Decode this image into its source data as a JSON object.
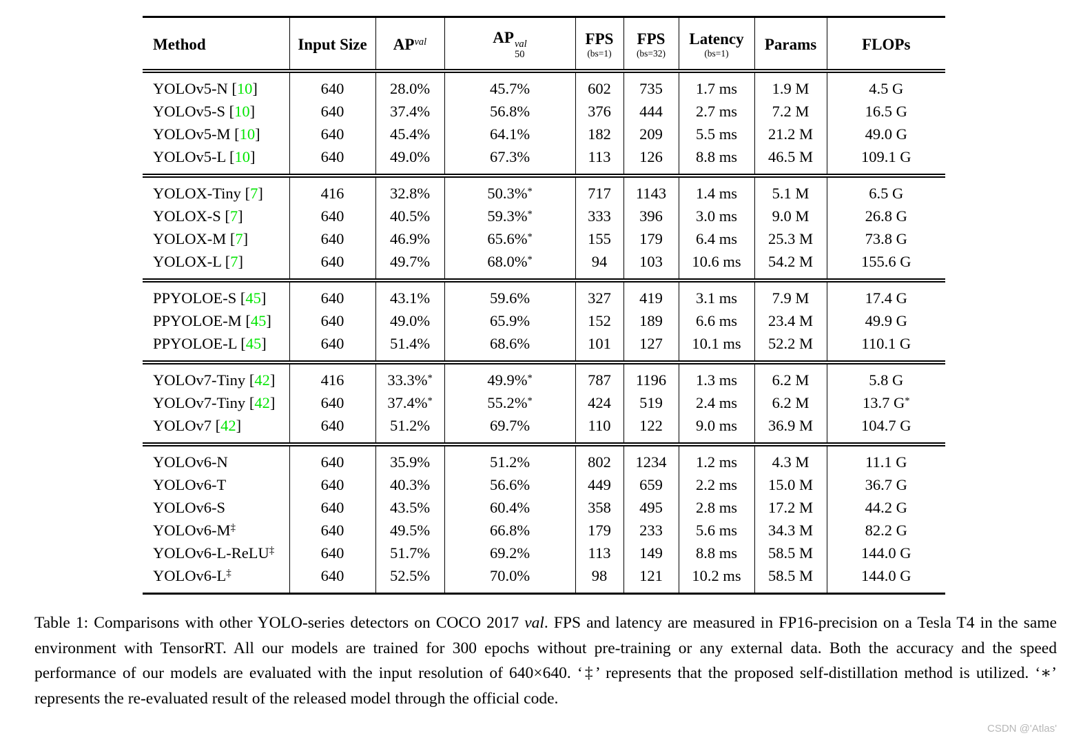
{
  "colors": {
    "citation_green": "#00e500",
    "watermark_gray": "#b7b7b7",
    "text_black": "#000000"
  },
  "watermark": "CSDN @'Atlas'",
  "table": {
    "columns": [
      {
        "id": "method",
        "main": "Method",
        "align": "left"
      },
      {
        "id": "input-size",
        "main": "Input Size"
      },
      {
        "id": "ap",
        "main": "AP",
        "sup": "val"
      },
      {
        "id": "ap50",
        "main": "AP",
        "sup": "val",
        "sub": "50"
      },
      {
        "id": "fps-bs1",
        "main": "FPS",
        "note": "(bs=1)"
      },
      {
        "id": "fps-bs32",
        "main": "FPS",
        "note": "(bs=32)"
      },
      {
        "id": "latency",
        "main": "Latency",
        "note": "(bs=1)"
      },
      {
        "id": "params",
        "main": "Params"
      },
      {
        "id": "flops",
        "main": "FLOPs"
      }
    ],
    "groups": [
      {
        "name": "yolov5",
        "rows": [
          {
            "name": "YOLOv5-N",
            "cite": "10",
            "mark": "",
            "size": "640",
            "ap": "28.0%",
            "apm": "",
            "ap50": "45.7%",
            "ap50m": "",
            "fps1": "602",
            "fps32": "735",
            "lat": "1.7 ms",
            "params": "1.9 M",
            "flops": "4.5 G",
            "flopsm": ""
          },
          {
            "name": "YOLOv5-S",
            "cite": "10",
            "mark": "",
            "size": "640",
            "ap": "37.4%",
            "apm": "",
            "ap50": "56.8%",
            "ap50m": "",
            "fps1": "376",
            "fps32": "444",
            "lat": "2.7 ms",
            "params": "7.2 M",
            "flops": "16.5 G",
            "flopsm": ""
          },
          {
            "name": "YOLOv5-M",
            "cite": "10",
            "mark": "",
            "size": "640",
            "ap": "45.4%",
            "apm": "",
            "ap50": "64.1%",
            "ap50m": "",
            "fps1": "182",
            "fps32": "209",
            "lat": "5.5 ms",
            "params": "21.2 M",
            "flops": "49.0 G",
            "flopsm": ""
          },
          {
            "name": "YOLOv5-L",
            "cite": "10",
            "mark": "",
            "size": "640",
            "ap": "49.0%",
            "apm": "",
            "ap50": "67.3%",
            "ap50m": "",
            "fps1": "113",
            "fps32": "126",
            "lat": "8.8 ms",
            "params": "46.5 M",
            "flops": "109.1 G",
            "flopsm": ""
          }
        ]
      },
      {
        "name": "yolox",
        "rows": [
          {
            "name": "YOLOX-Tiny",
            "cite": "7",
            "mark": "",
            "size": "416",
            "ap": "32.8%",
            "apm": "",
            "ap50": "50.3%",
            "ap50m": "*",
            "fps1": "717",
            "fps32": "1143",
            "lat": "1.4 ms",
            "params": "5.1 M",
            "flops": "6.5 G",
            "flopsm": ""
          },
          {
            "name": "YOLOX-S",
            "cite": "7",
            "mark": "",
            "size": "640",
            "ap": "40.5%",
            "apm": "",
            "ap50": "59.3%",
            "ap50m": "*",
            "fps1": "333",
            "fps32": "396",
            "lat": "3.0 ms",
            "params": "9.0 M",
            "flops": "26.8 G",
            "flopsm": ""
          },
          {
            "name": "YOLOX-M",
            "cite": "7",
            "mark": "",
            "size": "640",
            "ap": "46.9%",
            "apm": "",
            "ap50": "65.6%",
            "ap50m": "*",
            "fps1": "155",
            "fps32": "179",
            "lat": "6.4 ms",
            "params": "25.3 M",
            "flops": "73.8 G",
            "flopsm": ""
          },
          {
            "name": "YOLOX-L",
            "cite": "7",
            "mark": "",
            "size": "640",
            "ap": "49.7%",
            "apm": "",
            "ap50": "68.0%",
            "ap50m": "*",
            "fps1": "94",
            "fps32": "103",
            "lat": "10.6 ms",
            "params": "54.2 M",
            "flops": "155.6 G",
            "flopsm": ""
          }
        ]
      },
      {
        "name": "ppyoloe",
        "rows": [
          {
            "name": "PPYOLOE-S",
            "cite": "45",
            "mark": "",
            "size": "640",
            "ap": "43.1%",
            "apm": "",
            "ap50": "59.6%",
            "ap50m": "",
            "fps1": "327",
            "fps32": "419",
            "lat": "3.1 ms",
            "params": "7.9 M",
            "flops": "17.4 G",
            "flopsm": ""
          },
          {
            "name": "PPYOLOE-M",
            "cite": "45",
            "mark": "",
            "size": "640",
            "ap": "49.0%",
            "apm": "",
            "ap50": "65.9%",
            "ap50m": "",
            "fps1": "152",
            "fps32": "189",
            "lat": "6.6 ms",
            "params": "23.4 M",
            "flops": "49.9 G",
            "flopsm": ""
          },
          {
            "name": "PPYOLOE-L",
            "cite": "45",
            "mark": "",
            "size": "640",
            "ap": "51.4%",
            "apm": "",
            "ap50": "68.6%",
            "ap50m": "",
            "fps1": "101",
            "fps32": "127",
            "lat": "10.1 ms",
            "params": "52.2 M",
            "flops": "110.1 G",
            "flopsm": ""
          }
        ]
      },
      {
        "name": "yolov7",
        "rows": [
          {
            "name": "YOLOv7-Tiny",
            "cite": "42",
            "mark": "",
            "size": "416",
            "ap": "33.3%",
            "apm": "*",
            "ap50": "49.9%",
            "ap50m": "*",
            "fps1": "787",
            "fps32": "1196",
            "lat": "1.3 ms",
            "params": "6.2 M",
            "flops": "5.8 G",
            "flopsm": ""
          },
          {
            "name": "YOLOv7-Tiny",
            "cite": "42",
            "mark": "",
            "size": "640",
            "ap": "37.4%",
            "apm": "*",
            "ap50": "55.2%",
            "ap50m": "*",
            "fps1": "424",
            "fps32": "519",
            "lat": "2.4 ms",
            "params": "6.2 M",
            "flops": "13.7 G",
            "flopsm": "*"
          },
          {
            "name": "YOLOv7",
            "cite": "42",
            "mark": "",
            "size": "640",
            "ap": "51.2%",
            "apm": "",
            "ap50": "69.7%",
            "ap50m": "",
            "fps1": "110",
            "fps32": "122",
            "lat": "9.0 ms",
            "params": "36.9 M",
            "flops": "104.7 G",
            "flopsm": ""
          }
        ]
      },
      {
        "name": "yolov6",
        "rows": [
          {
            "name": "YOLOv6-N",
            "cite": "",
            "mark": "",
            "size": "640",
            "ap": "35.9%",
            "apm": "",
            "ap50": "51.2%",
            "ap50m": "",
            "fps1": "802",
            "fps32": "1234",
            "lat": "1.2 ms",
            "params": "4.3 M",
            "flops": "11.1 G",
            "flopsm": ""
          },
          {
            "name": "YOLOv6-T",
            "cite": "",
            "mark": "",
            "size": "640",
            "ap": "40.3%",
            "apm": "",
            "ap50": "56.6%",
            "ap50m": "",
            "fps1": "449",
            "fps32": "659",
            "lat": "2.2 ms",
            "params": "15.0 M",
            "flops": "36.7 G",
            "flopsm": ""
          },
          {
            "name": "YOLOv6-S",
            "cite": "",
            "mark": "",
            "size": "640",
            "ap": "43.5%",
            "apm": "",
            "ap50": "60.4%",
            "ap50m": "",
            "fps1": "358",
            "fps32": "495",
            "lat": "2.8 ms",
            "params": "17.2 M",
            "flops": "44.2 G",
            "flopsm": ""
          },
          {
            "name": "YOLOv6-M",
            "cite": "",
            "mark": "‡",
            "size": "640",
            "ap": "49.5%",
            "apm": "",
            "ap50": "66.8%",
            "ap50m": "",
            "fps1": "179",
            "fps32": "233",
            "lat": "5.6 ms",
            "params": "34.3 M",
            "flops": "82.2 G",
            "flopsm": ""
          },
          {
            "name": "YOLOv6-L-ReLU",
            "cite": "",
            "mark": "‡",
            "size": "640",
            "ap": "51.7%",
            "apm": "",
            "ap50": "69.2%",
            "ap50m": "",
            "fps1": "113",
            "fps32": "149",
            "lat": "8.8 ms",
            "params": "58.5 M",
            "flops": "144.0 G",
            "flopsm": ""
          },
          {
            "name": "YOLOv6-L",
            "cite": "",
            "mark": "‡",
            "size": "640",
            "ap": "52.5%",
            "apm": "",
            "ap50": "70.0%",
            "ap50m": "",
            "fps1": "98",
            "fps32": "121",
            "lat": "10.2 ms",
            "params": "58.5 M",
            "flops": "144.0 G",
            "flopsm": ""
          }
        ]
      }
    ]
  },
  "caption": {
    "parts": [
      {
        "text": "Table 1: Comparisons with other YOLO-series detectors on COCO 2017 "
      },
      {
        "text": "val",
        "italic": true
      },
      {
        "text": ". FPS and latency are measured in FP16-precision on a Tesla T4 in the same environment with TensorRT. All our models are trained for 300 epochs without pre-training or any external data. Both the accuracy and the speed performance of our models are evaluated with the input resolution of 640×640. ‘‡’ represents that the proposed self-distillation method is utilized. ‘∗’ represents the re-evaluated result of the released model through the official code."
      }
    ]
  }
}
